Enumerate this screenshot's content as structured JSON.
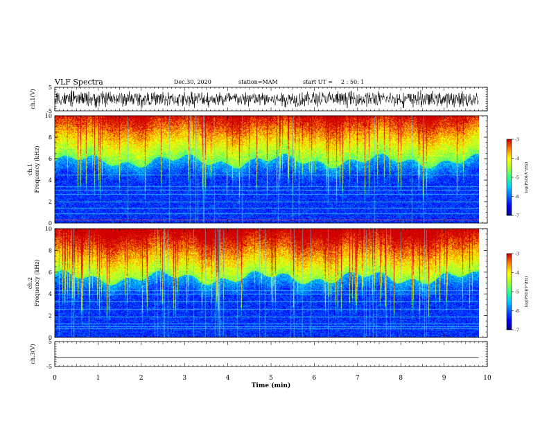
{
  "header": {
    "title": "VLF Spectra",
    "date": "Dec.30, 2020",
    "station": "station=MAM",
    "start_label": "start UT =",
    "start_time": "2 : 50: 1"
  },
  "colors": {
    "spectrogram_colormap": [
      "#00007f",
      "#0000ff",
      "#0060ff",
      "#00c8ff",
      "#30ff90",
      "#a0ff30",
      "#ffff00",
      "#ff8000",
      "#d00000"
    ],
    "waveform": "#000000",
    "axis": "#000000"
  },
  "chart_data": [
    {
      "type": "line",
      "name": "ch1-waveform",
      "ylabel": "ch.1(V)",
      "ylim": [
        -5,
        5
      ],
      "yticks": [
        "5",
        "-5"
      ],
      "xlim": [
        0,
        10
      ],
      "description_values": {
        "mean": 0,
        "typical_amplitude": 3
      }
    },
    {
      "type": "heatmap",
      "name": "ch1-spectrogram",
      "ylabel_top": "ch.1",
      "ylabel": "Frequency (kHz)",
      "ylim": [
        0,
        10
      ],
      "yticks": [
        "0",
        "2",
        "4",
        "6",
        "8",
        "10"
      ],
      "xlim": [
        0,
        10
      ],
      "data_end_min": 9.8,
      "colorbar": {
        "label": "log(PSD)(V²/Hz)",
        "range": [
          -7,
          -3
        ],
        "ticks": [
          "-3",
          "-4",
          "-5",
          "-6",
          "-7"
        ]
      },
      "noise_floor_kHz": 5.8
    },
    {
      "type": "heatmap",
      "name": "ch2-spectrogram",
      "ylabel_top": "ch.2",
      "ylabel": "Frequency (kHz)",
      "ylim": [
        0,
        10
      ],
      "yticks": [
        "0",
        "2",
        "4",
        "6",
        "8",
        "10"
      ],
      "xlim": [
        0,
        10
      ],
      "data_end_min": 9.8,
      "colorbar": {
        "label": "log(PSD)(V²/Hz)",
        "range": [
          -7,
          -3
        ],
        "ticks": [
          "-3",
          "-4",
          "-5",
          "-6",
          "-7"
        ]
      },
      "noise_floor_kHz": 5.5
    },
    {
      "type": "line",
      "name": "ch3-waveform",
      "ylabel": "ch.3(V)",
      "ylim": [
        -5,
        5
      ],
      "yticks": [
        "5",
        "-5"
      ],
      "xlim": [
        0,
        10
      ],
      "constant_value": -1.5,
      "xlabel": "Time (min)",
      "xticks": [
        "0",
        "1",
        "2",
        "3",
        "4",
        "5",
        "6",
        "7",
        "8",
        "9",
        "10"
      ]
    }
  ]
}
